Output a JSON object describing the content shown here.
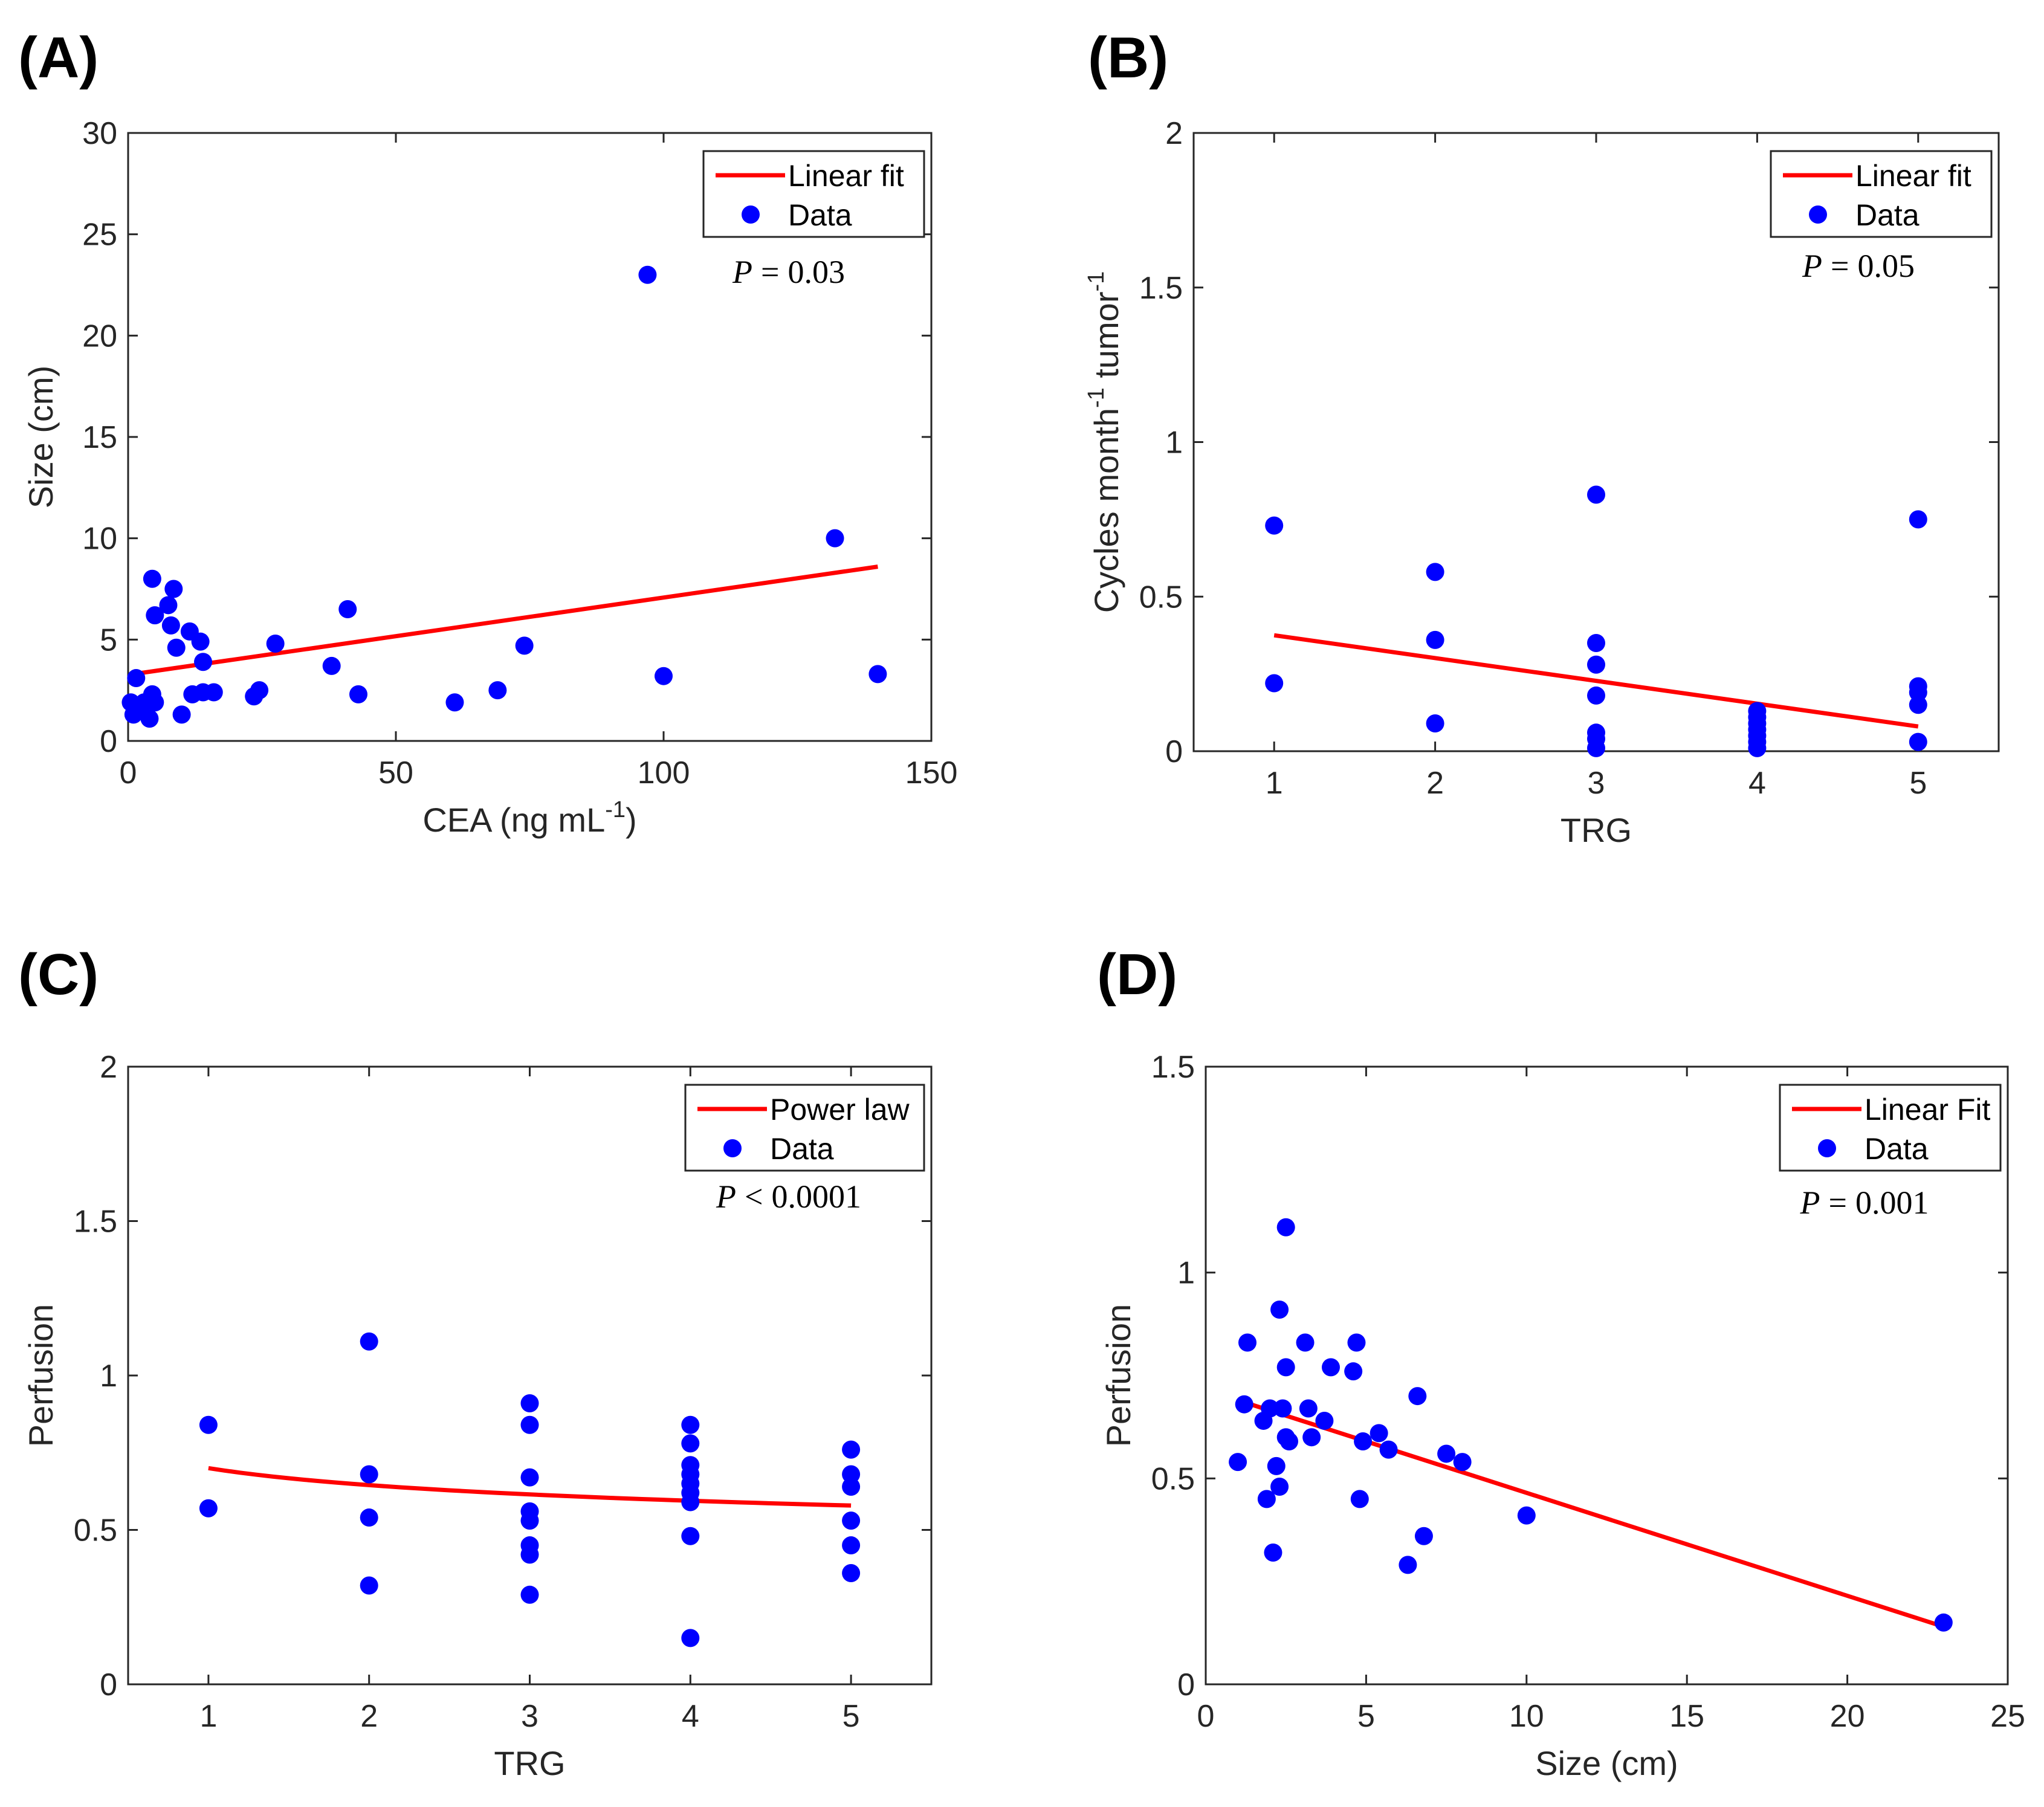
{
  "chart_data": [
    {
      "panel_label": "(A)",
      "type": "scatter",
      "xlabel": "CEA (ng mL",
      "xlabel_sup": "-1",
      "xlabel_end": ")",
      "ylabel": "Size (cm)",
      "xlim": [
        0,
        150
      ],
      "ylim": [
        0,
        30
      ],
      "xticks": [
        0,
        50,
        100,
        150
      ],
      "yticks": [
        0,
        5,
        10,
        15,
        20,
        25,
        30
      ],
      "legend": [
        "Linear fit",
        "Data"
      ],
      "p_label": "P",
      "p_op": "=",
      "p_value": "0.03",
      "fit": {
        "type": "linear",
        "x": [
          1,
          140
        ],
        "y": [
          3.3,
          8.6
        ]
      },
      "points": [
        [
          0.5,
          1.9
        ],
        [
          1,
          1.3
        ],
        [
          1.5,
          3.1
        ],
        [
          2,
          1.5
        ],
        [
          3,
          1.9
        ],
        [
          4,
          1.1
        ],
        [
          4.5,
          2.3
        ],
        [
          5,
          1.9
        ],
        [
          4.5,
          8.0
        ],
        [
          5,
          6.2
        ],
        [
          7.5,
          6.7
        ],
        [
          8,
          5.7
        ],
        [
          8.5,
          7.5
        ],
        [
          9,
          4.6
        ],
        [
          10,
          1.3
        ],
        [
          11.5,
          5.4
        ],
        [
          12,
          2.3
        ],
        [
          13.5,
          4.9
        ],
        [
          14,
          3.9
        ],
        [
          14,
          2.4
        ],
        [
          16,
          2.4
        ],
        [
          23.5,
          2.2
        ],
        [
          24.5,
          2.5
        ],
        [
          27.5,
          4.8
        ],
        [
          38,
          3.7
        ],
        [
          41,
          6.5
        ],
        [
          43,
          2.3
        ],
        [
          61,
          1.9
        ],
        [
          69,
          2.5
        ],
        [
          74,
          4.7
        ],
        [
          97,
          23.0
        ],
        [
          100,
          3.2
        ],
        [
          132,
          10.0
        ],
        [
          140,
          3.3
        ]
      ]
    },
    {
      "panel_label": "(B)",
      "type": "scatter",
      "xlabel": "TRG",
      "ylabel": "Cycles month",
      "ylabel_sup1": "-1",
      "ylabel_mid": " tumor",
      "ylabel_sup2": "-1",
      "xlim": [
        0.5,
        5.5
      ],
      "ylim": [
        0,
        2
      ],
      "xticks": [
        1,
        2,
        3,
        4,
        5
      ],
      "yticks": [
        0,
        0.5,
        1,
        1.5,
        2
      ],
      "legend": [
        "Linear fit",
        "Data"
      ],
      "p_label": "P",
      "p_op": "=",
      "p_value": "0.05",
      "fit": {
        "type": "linear",
        "x": [
          1,
          5
        ],
        "y": [
          0.375,
          0.08
        ]
      },
      "points": [
        [
          1,
          0.73
        ],
        [
          1,
          0.22
        ],
        [
          2,
          0.58
        ],
        [
          2,
          0.36
        ],
        [
          2,
          0.09
        ],
        [
          3,
          0.83
        ],
        [
          3,
          0.35
        ],
        [
          3,
          0.28
        ],
        [
          3,
          0.18
        ],
        [
          3,
          0.06
        ],
        [
          3,
          0.04
        ],
        [
          3,
          0.01
        ],
        [
          4,
          0.13
        ],
        [
          4,
          0.11
        ],
        [
          4,
          0.09
        ],
        [
          4,
          0.07
        ],
        [
          4,
          0.05
        ],
        [
          4,
          0.03
        ],
        [
          4,
          0.01
        ],
        [
          5,
          0.75
        ],
        [
          5,
          0.21
        ],
        [
          5,
          0.19
        ],
        [
          5,
          0.15
        ],
        [
          5,
          0.03
        ]
      ]
    },
    {
      "panel_label": "(C)",
      "type": "scatter",
      "xlabel": "TRG",
      "ylabel": "Perfusion",
      "xlim": [
        0.5,
        5.5
      ],
      "ylim": [
        0,
        2
      ],
      "xticks": [
        1,
        2,
        3,
        4,
        5
      ],
      "yticks": [
        0,
        0.5,
        1,
        1.5,
        2
      ],
      "legend": [
        "Power law",
        "Data"
      ],
      "p_label": "P",
      "p_op": "<",
      "p_value": "0.0001",
      "fit": {
        "type": "power",
        "a": 0.7,
        "b": -0.118,
        "x_range": [
          1,
          5
        ]
      },
      "points": [
        [
          1,
          0.84
        ],
        [
          1,
          0.57
        ],
        [
          2,
          1.11
        ],
        [
          2,
          0.68
        ],
        [
          2,
          0.54
        ],
        [
          2,
          0.32
        ],
        [
          3,
          0.91
        ],
        [
          3,
          0.84
        ],
        [
          3,
          0.67
        ],
        [
          3,
          0.56
        ],
        [
          3,
          0.53
        ],
        [
          3,
          0.45
        ],
        [
          3,
          0.42
        ],
        [
          3,
          0.29
        ],
        [
          4,
          0.84
        ],
        [
          4,
          0.78
        ],
        [
          4,
          0.71
        ],
        [
          4,
          0.68
        ],
        [
          4,
          0.65
        ],
        [
          4,
          0.62
        ],
        [
          4,
          0.59
        ],
        [
          4,
          0.48
        ],
        [
          4,
          0.15
        ],
        [
          5,
          0.76
        ],
        [
          5,
          0.68
        ],
        [
          5,
          0.64
        ],
        [
          5,
          0.53
        ],
        [
          5,
          0.45
        ],
        [
          5,
          0.36
        ]
      ]
    },
    {
      "panel_label": "(D)",
      "type": "scatter",
      "xlabel": "Size (cm)",
      "ylabel": "Perfusion",
      "xlim": [
        0,
        25
      ],
      "ylim": [
        0,
        1.5
      ],
      "xticks": [
        0,
        5,
        10,
        15,
        20,
        25
      ],
      "yticks": [
        0,
        0.5,
        1,
        1.5
      ],
      "legend": [
        "Linear Fit",
        "Data"
      ],
      "p_label": "P",
      "p_op": "=",
      "p_value": "0.001",
      "fit": {
        "type": "linear",
        "x": [
          1,
          23
        ],
        "y": [
          0.69,
          0.14
        ]
      },
      "points": [
        [
          1,
          0.54
        ],
        [
          1.2,
          0.68
        ],
        [
          1.3,
          0.83
        ],
        [
          1.8,
          0.64
        ],
        [
          1.9,
          0.45
        ],
        [
          2,
          0.67
        ],
        [
          2.1,
          0.32
        ],
        [
          2.2,
          0.53
        ],
        [
          2.3,
          0.91
        ],
        [
          2.3,
          0.48
        ],
        [
          2.4,
          0.67
        ],
        [
          2.5,
          1.11
        ],
        [
          2.5,
          0.77
        ],
        [
          2.5,
          0.6
        ],
        [
          2.6,
          0.59
        ],
        [
          3.1,
          0.83
        ],
        [
          3.2,
          0.67
        ],
        [
          3.3,
          0.6
        ],
        [
          3.7,
          0.64
        ],
        [
          3.9,
          0.77
        ],
        [
          4.6,
          0.76
        ],
        [
          4.7,
          0.83
        ],
        [
          4.8,
          0.45
        ],
        [
          4.9,
          0.59
        ],
        [
          5.4,
          0.61
        ],
        [
          5.7,
          0.57
        ],
        [
          6.3,
          0.29
        ],
        [
          6.6,
          0.7
        ],
        [
          6.8,
          0.36
        ],
        [
          7.5,
          0.56
        ],
        [
          8.0,
          0.54
        ],
        [
          10.0,
          0.41
        ],
        [
          23.0,
          0.15
        ]
      ]
    }
  ]
}
